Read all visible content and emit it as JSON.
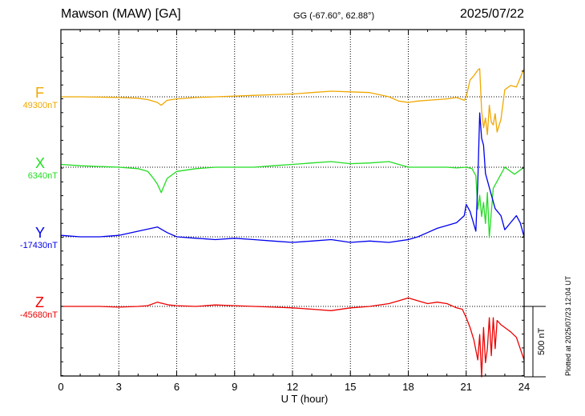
{
  "header": {
    "title": "Mawson (MAW)  [GA]",
    "coordinates": "GG (-67.60°,  62.88°)",
    "date": "2025/07/22"
  },
  "footer": {
    "scale_label": "500 nT",
    "plotted_note": "Plotted at 2025/07/23 12:04 UT"
  },
  "chart_data": {
    "type": "line",
    "xlabel": "U T (hour)",
    "xlim": [
      0,
      24
    ],
    "xticks": [
      "0",
      "3",
      "6",
      "9",
      "12",
      "15",
      "18",
      "21",
      "24"
    ],
    "scale_bar_nT": 500,
    "grid": true,
    "series": [
      {
        "name": "F",
        "baseline_label": "49300nT",
        "baseline_nT": 49300,
        "color": "#f0a800",
        "x": [
          0,
          1,
          2,
          3,
          4,
          4.5,
          5,
          5.2,
          5.5,
          6,
          7,
          8,
          9,
          10,
          11,
          12,
          13,
          14,
          15,
          16,
          17,
          17.5,
          18,
          18.5,
          19,
          19.5,
          20,
          20.5,
          20.9,
          21.0,
          21.2,
          21.4,
          21.5,
          21.6,
          21.7,
          21.8,
          21.9,
          22.0,
          22.1,
          22.2,
          22.3,
          22.4,
          22.5,
          22.6,
          22.8,
          23.0,
          23.3,
          23.6,
          24
        ],
        "y": [
          0,
          0,
          -2,
          -5,
          -10,
          -20,
          -40,
          -60,
          -25,
          -15,
          -5,
          0,
          5,
          10,
          15,
          20,
          30,
          40,
          35,
          30,
          0,
          -30,
          -40,
          -30,
          -25,
          -20,
          -15,
          -5,
          -25,
          0,
          120,
          150,
          170,
          190,
          200,
          -100,
          -220,
          -150,
          -270,
          -60,
          -180,
          -200,
          -120,
          -250,
          -160,
          50,
          80,
          70,
          200
        ]
      },
      {
        "name": "X",
        "baseline_label": "6340nT",
        "baseline_nT": 6340,
        "color": "#22dd22",
        "x": [
          0,
          1,
          2,
          3,
          4,
          4.5,
          4.8,
          5,
          5.2,
          5.5,
          6,
          7,
          8,
          9,
          10,
          11,
          12,
          13,
          14,
          15,
          16,
          17,
          18,
          19,
          20,
          20.5,
          21,
          21.3,
          21.5,
          21.6,
          21.7,
          21.8,
          21.9,
          22.0,
          22.1,
          22.2,
          22.4,
          22.6,
          22.8,
          23,
          23.5,
          24
        ],
        "y": [
          20,
          10,
          5,
          0,
          -10,
          -30,
          -80,
          -120,
          -180,
          -80,
          -30,
          -10,
          0,
          0,
          0,
          10,
          20,
          30,
          40,
          25,
          30,
          40,
          0,
          0,
          0,
          -5,
          0,
          -10,
          -60,
          -300,
          -200,
          -350,
          -250,
          -400,
          -180,
          -500,
          -150,
          -100,
          -50,
          0,
          -50,
          0
        ]
      },
      {
        "name": "Y",
        "baseline_label": "-17430nT",
        "baseline_nT": -17430,
        "color": "#0000ee",
        "x": [
          0,
          1,
          2,
          3,
          4,
          5,
          5.5,
          6,
          7,
          8,
          9,
          10,
          11,
          12,
          13,
          14,
          15,
          16,
          17,
          18,
          18.5,
          19,
          19.5,
          20,
          20.5,
          20.9,
          21.0,
          21.2,
          21.5,
          21.6,
          21.7,
          21.8,
          21.9,
          22.0,
          22.2,
          22.5,
          22.8,
          23,
          23.3,
          23.6,
          23.8,
          24
        ],
        "y": [
          10,
          0,
          0,
          10,
          40,
          70,
          30,
          0,
          -10,
          -20,
          -10,
          -20,
          -30,
          -40,
          -30,
          -20,
          -40,
          -30,
          -40,
          -20,
          0,
          30,
          60,
          80,
          100,
          150,
          230,
          180,
          40,
          380,
          880,
          700,
          650,
          450,
          350,
          200,
          150,
          50,
          100,
          150,
          100,
          0
        ]
      },
      {
        "name": "Z",
        "baseline_label": "-45680nT",
        "baseline_nT": -45680,
        "color": "#ee0000",
        "x": [
          0,
          1,
          2,
          3,
          4,
          4.5,
          5,
          5.3,
          5.6,
          6,
          7,
          8,
          9,
          10,
          11,
          12,
          13,
          14,
          15,
          16,
          17,
          17.5,
          18,
          18.5,
          19,
          19.5,
          20,
          20.5,
          20.8,
          21,
          21.2,
          21.4,
          21.6,
          21.7,
          21.8,
          21.9,
          22.0,
          22.1,
          22.2,
          22.3,
          22.4,
          22.5,
          22.6,
          22.8,
          23,
          23.3,
          23.6,
          24
        ],
        "y": [
          0,
          0,
          0,
          -5,
          0,
          5,
          30,
          20,
          10,
          5,
          0,
          10,
          5,
          0,
          -5,
          -10,
          -20,
          -30,
          -10,
          0,
          20,
          40,
          60,
          40,
          20,
          30,
          20,
          -10,
          -20,
          -80,
          -150,
          -240,
          -380,
          -200,
          -500,
          -150,
          -400,
          -300,
          -80,
          -350,
          -80,
          -300,
          -100,
          -130,
          -150,
          -180,
          -220,
          -380
        ]
      }
    ]
  }
}
